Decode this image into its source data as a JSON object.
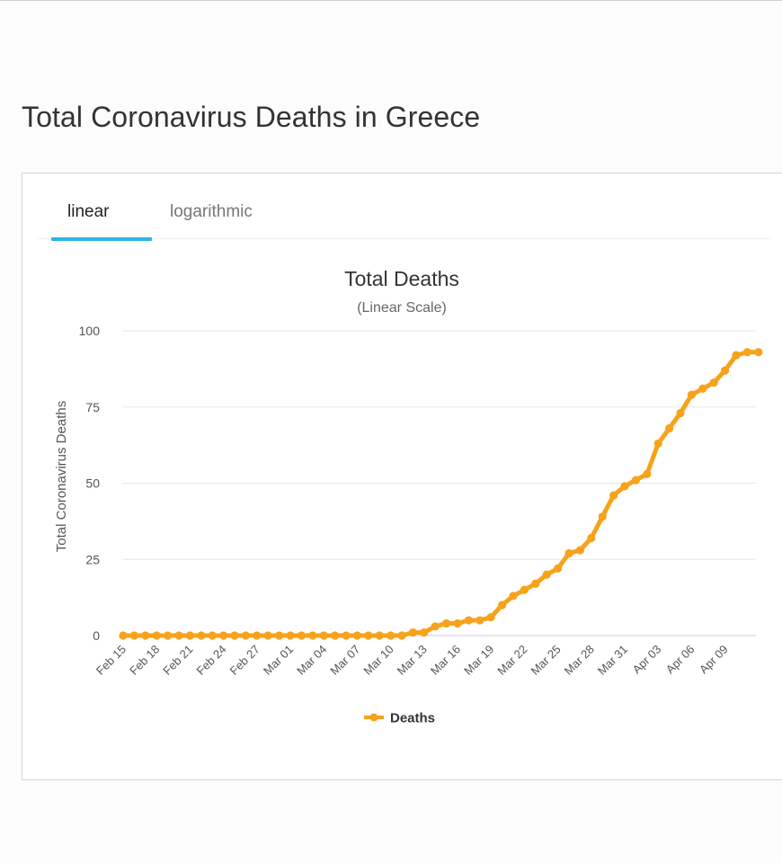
{
  "page": {
    "title": "Total Coronavirus Deaths in Greece"
  },
  "tabs": [
    {
      "label": "linear",
      "active": true
    },
    {
      "label": "logarithmic",
      "active": false
    }
  ],
  "colors": {
    "series": "#f7a21b",
    "tab_accent": "#2bb5e6",
    "grid": "#e6e6e6",
    "axis": "#c8c8e6"
  },
  "chart_data": {
    "type": "line",
    "title": "Total Deaths",
    "subtitle": "(Linear Scale)",
    "xlabel": "",
    "ylabel": "Total Coronavirus Deaths",
    "ylim": [
      0,
      100
    ],
    "yticks": [
      0,
      25,
      50,
      75,
      100
    ],
    "grid": true,
    "legend_position": "bottom-center",
    "x": [
      "Feb 15",
      "Feb 16",
      "Feb 17",
      "Feb 18",
      "Feb 19",
      "Feb 20",
      "Feb 21",
      "Feb 22",
      "Feb 23",
      "Feb 24",
      "Feb 25",
      "Feb 26",
      "Feb 27",
      "Feb 28",
      "Feb 29",
      "Mar 01",
      "Mar 02",
      "Mar 03",
      "Mar 04",
      "Mar 05",
      "Mar 06",
      "Mar 07",
      "Mar 08",
      "Mar 09",
      "Mar 10",
      "Mar 11",
      "Mar 12",
      "Mar 13",
      "Mar 14",
      "Mar 15",
      "Mar 16",
      "Mar 17",
      "Mar 18",
      "Mar 19",
      "Mar 20",
      "Mar 21",
      "Mar 22",
      "Mar 23",
      "Mar 24",
      "Mar 25",
      "Mar 26",
      "Mar 27",
      "Mar 28",
      "Mar 29",
      "Mar 30",
      "Mar 31",
      "Apr 01",
      "Apr 02",
      "Apr 03",
      "Apr 04",
      "Apr 05",
      "Apr 06",
      "Apr 07",
      "Apr 08",
      "Apr 09",
      "Apr 10",
      "Apr 11",
      "Apr 12"
    ],
    "xtick_labels": [
      "Feb 15",
      "Feb 18",
      "Feb 21",
      "Feb 24",
      "Feb 27",
      "Mar 01",
      "Mar 04",
      "Mar 07",
      "Mar 10",
      "Mar 13",
      "Mar 16",
      "Mar 19",
      "Mar 22",
      "Mar 25",
      "Mar 28",
      "Mar 31",
      "Apr 03",
      "Apr 06",
      "Apr 09"
    ],
    "series": [
      {
        "name": "Deaths",
        "color": "#f7a21b",
        "values": [
          0,
          0,
          0,
          0,
          0,
          0,
          0,
          0,
          0,
          0,
          0,
          0,
          0,
          0,
          0,
          0,
          0,
          0,
          0,
          0,
          0,
          0,
          0,
          0,
          0,
          0,
          1,
          1,
          3,
          4,
          4,
          5,
          5,
          6,
          10,
          13,
          15,
          17,
          20,
          22,
          27,
          28,
          32,
          39,
          46,
          49,
          51,
          53,
          63,
          68,
          73,
          79,
          81,
          83,
          87,
          92,
          93,
          93
        ]
      }
    ]
  }
}
